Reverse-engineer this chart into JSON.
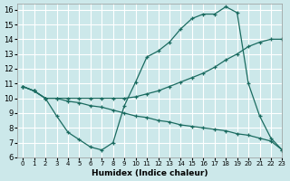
{
  "xlabel": "Humidex (Indice chaleur)",
  "bg_color": "#cce8ea",
  "grid_color": "#ffffff",
  "line_color": "#1a6b60",
  "xlim": [
    -0.5,
    23
  ],
  "ylim": [
    6,
    16.4
  ],
  "xticks": [
    0,
    1,
    2,
    3,
    4,
    5,
    6,
    7,
    8,
    9,
    10,
    11,
    12,
    13,
    14,
    15,
    16,
    17,
    18,
    19,
    20,
    21,
    22,
    23
  ],
  "yticks": [
    6,
    7,
    8,
    9,
    10,
    11,
    12,
    13,
    14,
    15,
    16
  ],
  "line1_x": [
    0,
    1,
    2,
    3,
    4,
    5,
    6,
    7,
    8,
    9,
    10,
    11,
    12,
    13,
    14,
    15,
    16,
    17,
    18,
    19,
    20,
    21,
    22,
    23
  ],
  "line1_y": [
    10.8,
    10.5,
    10.0,
    8.8,
    7.7,
    7.2,
    6.7,
    6.5,
    7.0,
    9.5,
    11.1,
    12.8,
    13.2,
    13.8,
    14.7,
    15.4,
    15.7,
    15.7,
    16.2,
    15.8,
    11.0,
    8.8,
    7.3,
    6.5
  ],
  "line2_x": [
    0,
    1,
    2,
    3,
    4,
    5,
    6,
    7,
    8,
    9,
    10,
    11,
    12,
    13,
    14,
    15,
    16,
    17,
    18,
    19,
    20,
    21,
    22,
    23
  ],
  "line2_y": [
    10.8,
    10.5,
    10.0,
    10.0,
    10.0,
    10.0,
    10.0,
    10.0,
    10.0,
    10.0,
    10.1,
    10.3,
    10.5,
    10.8,
    11.1,
    11.4,
    11.7,
    12.1,
    12.6,
    13.0,
    13.5,
    13.8,
    14.0,
    14.0
  ],
  "line3_x": [
    0,
    1,
    2,
    3,
    4,
    5,
    6,
    7,
    8,
    9,
    10,
    11,
    12,
    13,
    14,
    15,
    16,
    17,
    18,
    19,
    20,
    21,
    22,
    23
  ],
  "line3_y": [
    10.8,
    10.5,
    10.0,
    10.0,
    9.8,
    9.7,
    9.5,
    9.4,
    9.2,
    9.0,
    8.8,
    8.7,
    8.5,
    8.4,
    8.2,
    8.1,
    8.0,
    7.9,
    7.8,
    7.6,
    7.5,
    7.3,
    7.1,
    6.5
  ]
}
